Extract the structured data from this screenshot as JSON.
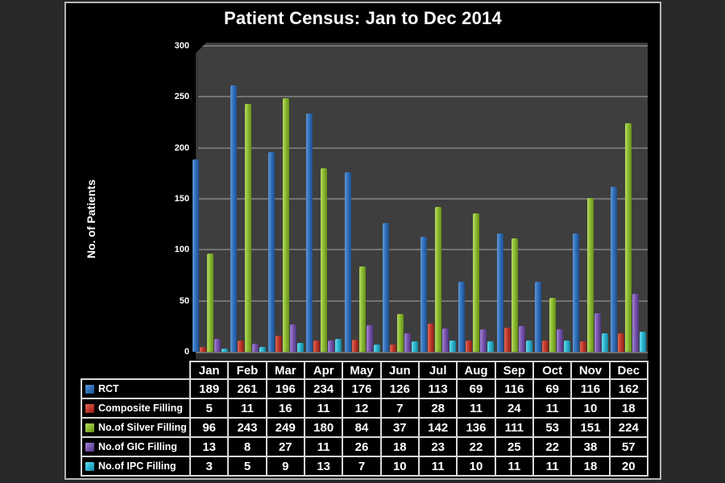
{
  "title": "Patient Census: Jan to Dec 2014",
  "colors": {
    "page_background": "#292929",
    "slide_background": "#000000",
    "slide_frame": "#b5b5b5",
    "plot_background": "#3e3e3e",
    "gridline": "#737373",
    "table_border": "#d9d9d9",
    "text": "#ffffff"
  },
  "chart_data": {
    "type": "bar",
    "title": "Patient Census: Jan to Dec 2014",
    "xlabel": "",
    "ylabel": "No. of Patients",
    "ylim": [
      0,
      300
    ],
    "yticks": [
      0,
      50,
      100,
      150,
      200,
      250,
      300
    ],
    "grid": true,
    "legend_position": "table-left-column",
    "categories": [
      "Jan",
      "Feb",
      "Mar",
      "Apr",
      "May",
      "Jun",
      "Jul",
      "Aug",
      "Sep",
      "Oct",
      "Nov",
      "Dec"
    ],
    "series": [
      {
        "name": "RCT",
        "color": "#3272bd",
        "color_light": "#5e97d6",
        "color_dark": "#1d4e8c",
        "values": [
          189,
          261,
          196,
          234,
          176,
          126,
          113,
          69,
          116,
          69,
          116,
          162
        ]
      },
      {
        "name": "Composite Filling",
        "color": "#c23a2c",
        "color_light": "#e0695c",
        "color_dark": "#8c1f16",
        "values": [
          5,
          11,
          16,
          11,
          12,
          7,
          28,
          11,
          24,
          11,
          10,
          18
        ]
      },
      {
        "name": "No.of Silver Filling",
        "color": "#8ebc34",
        "color_light": "#b4da60",
        "color_dark": "#648f16",
        "values": [
          96,
          243,
          249,
          180,
          84,
          37,
          142,
          136,
          111,
          53,
          151,
          224
        ]
      },
      {
        "name": "No.of GIC Filling",
        "color": "#7a58b0",
        "color_light": "#a384d2",
        "color_dark": "#503381",
        "values": [
          13,
          8,
          27,
          11,
          26,
          18,
          23,
          22,
          25,
          22,
          38,
          57
        ]
      },
      {
        "name": "No.of IPC Filling",
        "color": "#31b7d2",
        "color_light": "#67dcef",
        "color_dark": "#13819b",
        "values": [
          3,
          5,
          9,
          13,
          7,
          10,
          11,
          10,
          11,
          11,
          18,
          20
        ]
      }
    ]
  }
}
